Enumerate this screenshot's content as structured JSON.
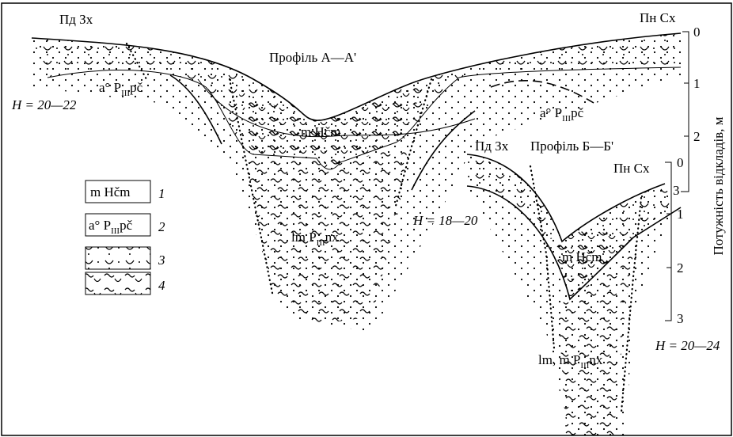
{
  "profile_a": {
    "left_direction": "Пд Зх",
    "right_direction": "Пн Сх",
    "title": "Профіль А—А'",
    "height_label": "H = 20—22",
    "upper_label": {
      "prefix": "a° P",
      "sub": "III",
      "suffix": "pč"
    },
    "right_label": {
      "prefix": "a° P",
      "sub": "III",
      "suffix": "pč"
    },
    "marine_label": "m Hčm",
    "lower_label": {
      "prefix": "lm P",
      "sub": "III",
      "suffix": "nx"
    },
    "scale": [
      "0",
      "1",
      "2",
      "3"
    ]
  },
  "profile_b": {
    "left_direction": "Пд Зх",
    "title": "Профіль Б—Б'",
    "right_direction": "Пн Сх",
    "left_height_label": "H = 18—20",
    "right_height_label": "H = 20—24",
    "marine_label": "m Hčm",
    "lower_label": {
      "prefix": "lm, m P",
      "sub": "III",
      "suffix": "nx"
    },
    "scale": [
      "0",
      "1",
      "2",
      "3"
    ]
  },
  "axis_label": "Потужність відкладів, м",
  "legend": [
    {
      "label": "m Hčm",
      "number": "1"
    },
    {
      "label": {
        "prefix": "a° P",
        "sub": "III",
        "suffix": "pč"
      },
      "number": "2"
    },
    {
      "number": "3"
    },
    {
      "number": "4"
    }
  ]
}
